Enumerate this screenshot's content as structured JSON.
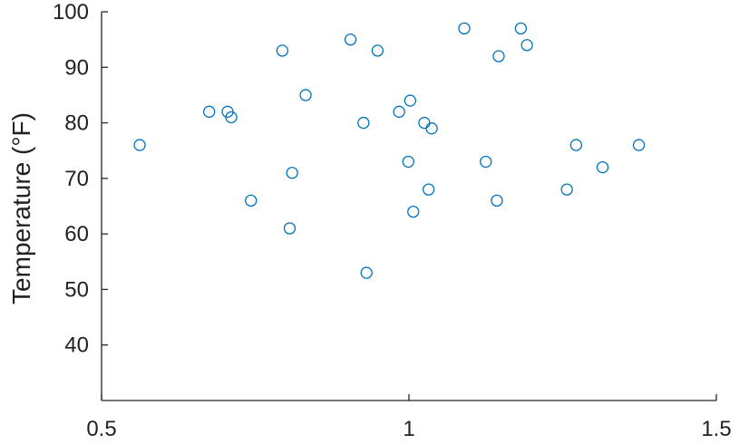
{
  "chart_data": {
    "type": "scatter",
    "title": "",
    "xlabel": "",
    "ylabel": "Temperature (°F)",
    "xlim": [
      0.5,
      1.5
    ],
    "ylim": [
      30,
      100
    ],
    "xticks": [
      0.5,
      1,
      1.5
    ],
    "xtick_labels": [
      "0.5",
      "1",
      "1.5"
    ],
    "yticks": [
      40,
      50,
      60,
      70,
      80,
      90,
      100
    ],
    "ytick_labels": [
      "40",
      "50",
      "60",
      "70",
      "80",
      "90",
      "100"
    ],
    "grid": false,
    "legend": "none",
    "marker": "open-circle",
    "color": "#0072BD",
    "points": [
      {
        "x": 0.562,
        "y": 76
      },
      {
        "x": 0.675,
        "y": 82
      },
      {
        "x": 0.705,
        "y": 82
      },
      {
        "x": 0.711,
        "y": 81
      },
      {
        "x": 0.743,
        "y": 66
      },
      {
        "x": 0.794,
        "y": 93
      },
      {
        "x": 0.806,
        "y": 61
      },
      {
        "x": 0.81,
        "y": 71
      },
      {
        "x": 0.832,
        "y": 85
      },
      {
        "x": 0.905,
        "y": 95
      },
      {
        "x": 0.926,
        "y": 80
      },
      {
        "x": 0.931,
        "y": 53
      },
      {
        "x": 0.949,
        "y": 93
      },
      {
        "x": 0.984,
        "y": 82
      },
      {
        "x": 0.999,
        "y": 73
      },
      {
        "x": 1.002,
        "y": 84
      },
      {
        "x": 1.007,
        "y": 64
      },
      {
        "x": 1.025,
        "y": 80
      },
      {
        "x": 1.032,
        "y": 68
      },
      {
        "x": 1.037,
        "y": 79
      },
      {
        "x": 1.09,
        "y": 97
      },
      {
        "x": 1.125,
        "y": 73
      },
      {
        "x": 1.143,
        "y": 66
      },
      {
        "x": 1.146,
        "y": 92
      },
      {
        "x": 1.182,
        "y": 97
      },
      {
        "x": 1.192,
        "y": 94
      },
      {
        "x": 1.257,
        "y": 68
      },
      {
        "x": 1.272,
        "y": 76
      },
      {
        "x": 1.315,
        "y": 72
      },
      {
        "x": 1.374,
        "y": 76
      }
    ]
  }
}
